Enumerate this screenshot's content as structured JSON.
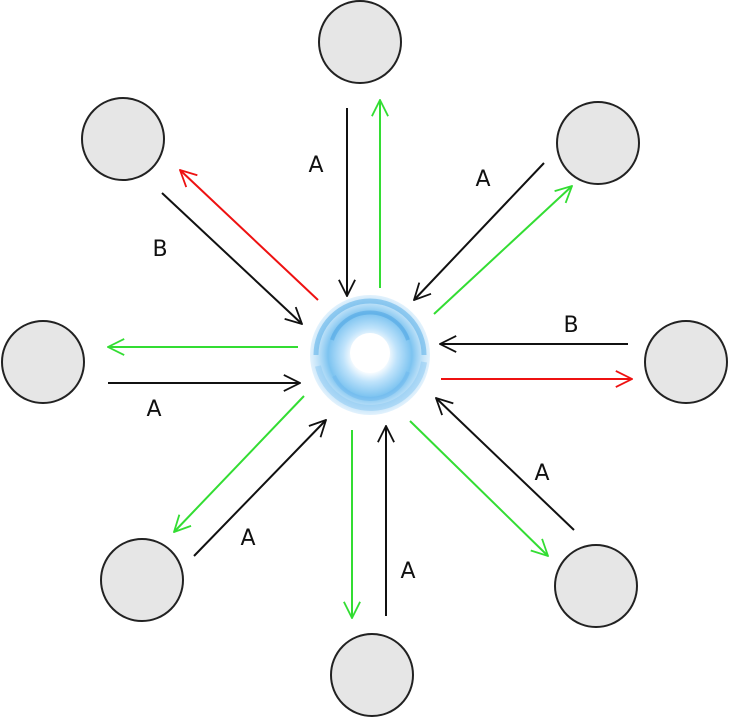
{
  "colors": {
    "inbound": "#111111",
    "outbound_ok": "#33dd33",
    "outbound_alt": "#ee1111",
    "node_fill": "#e6e6e6",
    "node_stroke": "#222222",
    "hub": "#7cc3f0"
  },
  "nodes": [
    "top",
    "top-right",
    "right",
    "bottom-right",
    "bottom",
    "bottom-left",
    "left",
    "top-left"
  ],
  "edge_labels": {
    "top": "A",
    "top_right": "A",
    "right": "B",
    "bottom_right": "A",
    "bottom": "A",
    "bottom_left": "A",
    "left": "A",
    "top_left": "B"
  }
}
